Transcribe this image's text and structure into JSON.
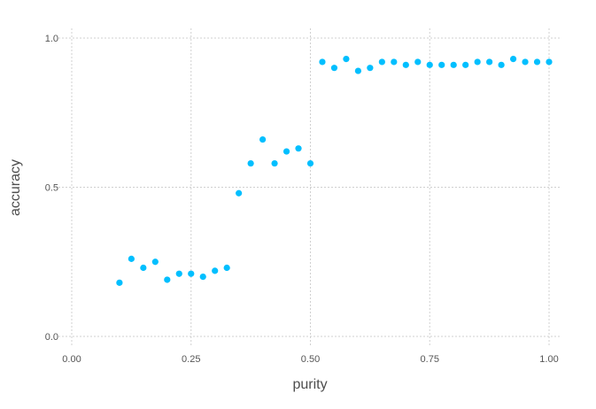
{
  "chart_data": {
    "type": "scatter",
    "title": "",
    "xlabel": "purity",
    "ylabel": "accuracy",
    "xlim": [
      0.0,
      1.0
    ],
    "ylim": [
      0.0,
      1.0
    ],
    "xticks": [
      0.0,
      0.25,
      0.5,
      0.75,
      1.0
    ],
    "xtick_labels": [
      "0.00",
      "0.25",
      "0.50",
      "0.75",
      "1.00"
    ],
    "yticks": [
      0.0,
      0.5,
      1.0
    ],
    "ytick_labels": [
      "0.0",
      "0.5",
      "1.0"
    ],
    "grid": true,
    "marker_color": "#00bfff",
    "series": [
      {
        "x": [
          0.1,
          0.125,
          0.15,
          0.175,
          0.2,
          0.225,
          0.25,
          0.275,
          0.3,
          0.325,
          0.35,
          0.375,
          0.4,
          0.425,
          0.45,
          0.475,
          0.5,
          0.525,
          0.55,
          0.575,
          0.6,
          0.625,
          0.65,
          0.675,
          0.7,
          0.725,
          0.75,
          0.775,
          0.8,
          0.825,
          0.85,
          0.875,
          0.9,
          0.925,
          0.95,
          0.975,
          1.0
        ],
        "y": [
          0.18,
          0.26,
          0.23,
          0.25,
          0.19,
          0.21,
          0.21,
          0.2,
          0.22,
          0.23,
          0.48,
          0.58,
          0.66,
          0.58,
          0.62,
          0.63,
          0.58,
          0.92,
          0.9,
          0.93,
          0.89,
          0.9,
          0.92,
          0.92,
          0.91,
          0.92,
          0.91,
          0.91,
          0.91,
          0.91,
          0.92,
          0.92,
          0.91,
          0.93,
          0.92,
          0.92,
          0.92
        ]
      }
    ]
  }
}
